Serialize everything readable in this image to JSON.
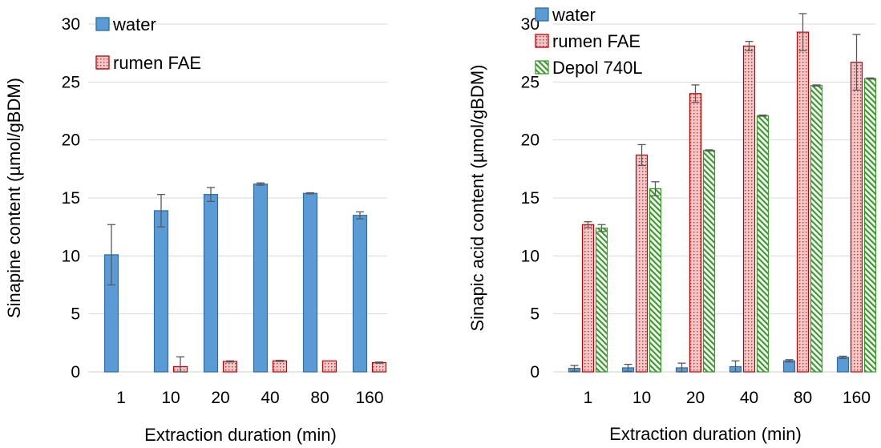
{
  "colors": {
    "water_fill": "#5b9bd5",
    "water_stroke": "#2e6da4",
    "rumen_fill": "#f4c7c7",
    "rumen_stroke": "#c00000",
    "rumen_dot": "#d9262c",
    "depol_fill": "#d8ecc8",
    "depol_stroke": "#3a9a2a",
    "grid": "#d9d9d9",
    "errorbar": "#595959"
  },
  "chart_data": [
    {
      "type": "bar",
      "categories": [
        "1",
        "10",
        "20",
        "40",
        "80",
        "160"
      ],
      "xlabel": "Extraction duration (min)",
      "ylabel": "Sinapine content (µmol/gBDM)",
      "ylim": [
        0,
        30
      ],
      "yticks": [
        "0",
        "5",
        "10",
        "15",
        "20",
        "25",
        "30"
      ],
      "grid": true,
      "legend_position": "top-left",
      "series": [
        {
          "name": "water",
          "key": "water",
          "values": [
            10.1,
            13.9,
            15.3,
            16.2,
            15.4,
            13.5
          ],
          "errors": [
            2.6,
            1.4,
            0.6,
            0.1,
            0.05,
            0.3
          ]
        },
        {
          "name": "rumen FAE",
          "key": "rumen",
          "values": [
            0.0,
            0.45,
            0.9,
            0.95,
            0.95,
            0.8
          ],
          "errors": [
            0.0,
            0.85,
            0.05,
            0.05,
            0.0,
            0.05
          ]
        }
      ]
    },
    {
      "type": "bar",
      "categories": [
        "1",
        "10",
        "20",
        "40",
        "80",
        "160"
      ],
      "xlabel": "Extraction duration (min)",
      "ylabel": "Sinapic acid content (µmol/gBDM)",
      "ylim": [
        0,
        30
      ],
      "yticks": [
        "0",
        "5",
        "10",
        "15",
        "20",
        "25",
        "30"
      ],
      "grid": true,
      "legend_position": "top-left",
      "series": [
        {
          "name": "water",
          "key": "water",
          "values": [
            0.3,
            0.35,
            0.35,
            0.45,
            0.95,
            1.25
          ],
          "errors": [
            0.25,
            0.3,
            0.4,
            0.5,
            0.1,
            0.1
          ]
        },
        {
          "name": "rumen FAE",
          "key": "rumen",
          "values": [
            12.7,
            18.7,
            24.0,
            28.1,
            29.3,
            26.7
          ],
          "errors": [
            0.25,
            0.9,
            0.75,
            0.4,
            1.6,
            2.4
          ]
        },
        {
          "name": "Depol 740L",
          "key": "depol",
          "values": [
            12.4,
            15.8,
            19.1,
            22.1,
            24.7,
            25.3
          ],
          "errors": [
            0.3,
            0.6,
            0.05,
            0.05,
            0.05,
            0.05
          ]
        }
      ]
    }
  ]
}
